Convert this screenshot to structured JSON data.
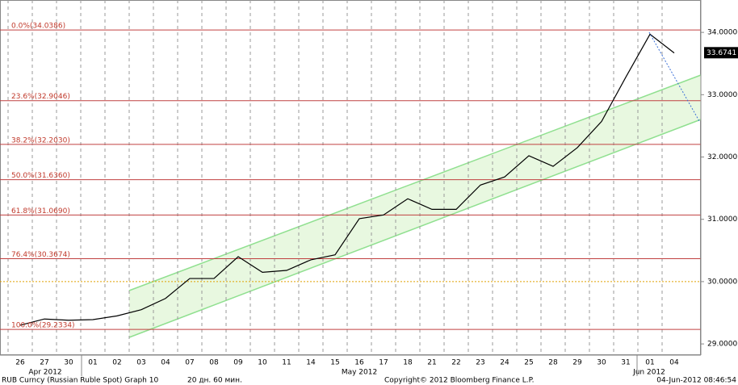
{
  "chart_data": {
    "type": "line",
    "categories": [
      "26",
      "27",
      "30",
      "01",
      "02",
      "03",
      "04",
      "07",
      "08",
      "09",
      "10",
      "11",
      "14",
      "15",
      "16",
      "17",
      "18",
      "21",
      "22",
      "23",
      "24",
      "25",
      "28",
      "29",
      "30",
      "31",
      "01",
      "04"
    ],
    "months": [
      "Apr 2012",
      "May 2012",
      "Jun 2012"
    ],
    "series": [
      {
        "name": "RUB Curncy",
        "color": "#000000",
        "values": [
          29.3,
          29.4,
          29.38,
          29.39,
          29.45,
          29.55,
          29.73,
          30.05,
          30.05,
          30.4,
          30.15,
          30.18,
          30.35,
          30.43,
          31.01,
          31.07,
          31.33,
          31.16,
          31.16,
          31.55,
          31.68,
          32.02,
          31.85,
          32.15,
          32.57,
          33.28,
          33.97,
          33.67
        ]
      }
    ],
    "last_price": {
      "value": 33.6741,
      "label": "33.6741"
    },
    "fib_levels": [
      {
        "value": 34.0386,
        "label": "0.0%(34.0386)"
      },
      {
        "value": 32.9046,
        "label": "23.6%(32.9046)"
      },
      {
        "value": 32.203,
        "label": "38.2%(32.2030)"
      },
      {
        "value": 31.636,
        "label": "50.0%(31.6360)"
      },
      {
        "value": 31.069,
        "label": "61.8%(31.0690)"
      },
      {
        "value": 30.3674,
        "label": "76.4%(30.3674)"
      },
      {
        "value": 29.2334,
        "label": "100.0%(29.2334)"
      }
    ],
    "ylim": [
      28.82,
      34.52
    ],
    "yticks": [
      {
        "value": 29,
        "label": "29.0000"
      },
      {
        "value": 30,
        "label": "30.0000"
      },
      {
        "value": 31,
        "label": "31.0000"
      },
      {
        "value": 32,
        "label": "32.0000"
      },
      {
        "value": 33,
        "label": "33.0000"
      },
      {
        "value": 34,
        "label": "34.0000"
      }
    ],
    "footer": {
      "left": "RUB Curncy (Russian Ruble Spot) Graph 10",
      "period": "20 дн. 60 мин.",
      "copyright": "Copyright© 2012 Bloomberg Finance L.P.",
      "timestamp": "04-Jun-2012 08:46:54"
    }
  }
}
